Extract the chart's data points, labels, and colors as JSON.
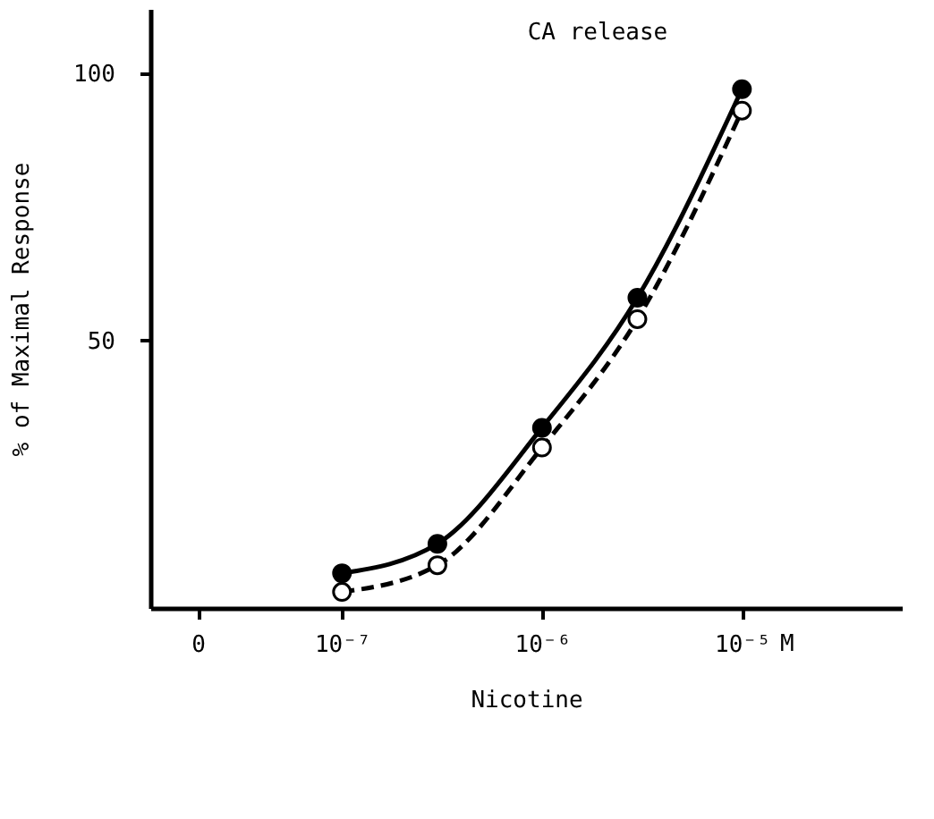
{
  "chart_data": {
    "type": "line",
    "title": "CA release",
    "xlabel": "Nicotine",
    "ylabel": "% of Maximal Response",
    "x": [
      1e-07,
      3e-07,
      1e-06,
      3e-06,
      1e-05
    ],
    "series": [
      {
        "color": "#000000",
        "line_style": "solid",
        "marker": "circle",
        "values": [
          6.5,
          12,
          33.7,
          58,
          97
        ]
      },
      {
        "color": "#000000",
        "line_style": "dashed",
        "marker": "circle",
        "values": [
          3,
          8,
          30,
          54,
          93
        ]
      }
    ],
    "log": "x",
    "xlim": [
      1.1e-08,
      6.3e-05
    ],
    "xticks": [
      {
        "value": 1.9e-08,
        "label": "0"
      },
      {
        "value": 1e-07,
        "label": "10⁻⁷"
      },
      {
        "value": 1e-06,
        "label": "10⁻⁶"
      },
      {
        "value": 1e-05,
        "label": "10⁻⁵"
      }
    ],
    "ylim": [
      0,
      112
    ],
    "yticks": [
      50,
      100
    ],
    "grid": false,
    "annotations": [
      "M"
    ]
  }
}
